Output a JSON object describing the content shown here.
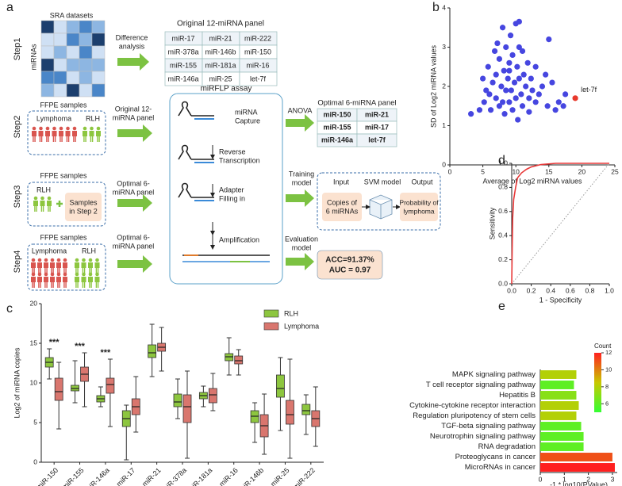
{
  "panel_labels": [
    "a",
    "b",
    "c",
    "d",
    "e"
  ],
  "diagram": {
    "steps": [
      "Step1",
      "Step2",
      "Step3",
      "Step4"
    ],
    "sra_title": "SRA datasets",
    "sra_axis": "miRNAs",
    "difference_analysis": [
      "Difference",
      "analysis"
    ],
    "original_panel": {
      "title": "Original 12-miRNA panel",
      "rows": [
        [
          "miR-17",
          "miR-21",
          "miR-222"
        ],
        [
          "miR-378a",
          "miR-146b",
          "miR-150"
        ],
        [
          "miR-155",
          "miR-181a",
          "miR-16"
        ],
        [
          "miR-146a",
          "miR-25",
          "let-7f"
        ]
      ]
    },
    "step2": {
      "samples": "FFPE samples",
      "groups": [
        "Lymphoma",
        "RLH"
      ],
      "input": [
        "Original 12-",
        "miRNA panel"
      ]
    },
    "assay": {
      "title": "miRFLP assay",
      "stages": [
        [
          "miRNA",
          "Capture"
        ],
        [
          "Reverse",
          "Transcription"
        ],
        [
          "Adapter",
          "Filling in"
        ],
        [
          "Amplification"
        ]
      ]
    },
    "anova": "ANOVA",
    "optimal_panel": {
      "title": "Optimal  6-miRNA panel",
      "rows": [
        [
          "miR-150",
          "miR-21"
        ],
        [
          "miR-155",
          "miR-17"
        ],
        [
          "miR-146a",
          "let-7f"
        ]
      ]
    },
    "step3": {
      "samples": "FFPE samples",
      "group": "RLH",
      "extra": [
        "Samples",
        "in Step 2"
      ],
      "input": [
        "Optimal 6-",
        "miRNA panel"
      ]
    },
    "training": [
      "Training",
      "model"
    ],
    "svm": {
      "headers": [
        "Input",
        "SVM model",
        "Output"
      ],
      "input": [
        "Copies of",
        "6 miRNAs"
      ],
      "output": [
        "Probability of",
        "lymphoma"
      ]
    },
    "step4": {
      "samples": "FFPE samples",
      "groups": [
        "Lymphoma",
        "RLH"
      ],
      "input": [
        "Optimal 6-",
        "miRNA panel"
      ]
    },
    "evaluation": [
      "Evaluation",
      "model"
    ],
    "metrics": [
      "ACC=91.37%",
      "AUC = 0.97"
    ]
  },
  "chart_data": [
    {
      "type": "scatter",
      "xlabel": "Average of Log2 miRNA values",
      "ylabel": "SD of Log2 miRNA values",
      "xlim": [
        0,
        25
      ],
      "xticks": [
        0,
        5,
        10,
        15,
        20,
        25
      ],
      "ylim": [
        0,
        4
      ],
      "yticks": [
        0,
        1,
        2,
        3,
        4
      ],
      "series": [
        {
          "color": "#4646e0",
          "x": [
            3.2,
            4.5,
            5,
            5.2,
            5.5,
            5.8,
            6,
            6.2,
            6.5,
            6.8,
            7,
            7,
            7.2,
            7.5,
            7.5,
            7.8,
            8,
            8,
            8.2,
            8.3,
            8.5,
            8.5,
            8.8,
            9,
            9,
            9.2,
            9.3,
            9.5,
            9.5,
            9.8,
            10,
            10,
            10.2,
            10.3,
            10.5,
            10.5,
            10.8,
            11,
            11,
            11.2,
            11.5,
            11.8,
            12,
            12,
            12.3,
            12.5,
            13,
            13,
            13.5,
            14,
            14.5,
            14.8,
            15,
            15.5,
            16,
            16.5,
            17.2,
            17.5,
            9,
            10.5
          ],
          "values": [
            1.3,
            1.4,
            2.2,
            1.6,
            1.9,
            2.5,
            1.8,
            1.4,
            2.1,
            2.9,
            1.7,
            2.3,
            3.1,
            1.5,
            2.7,
            2.0,
            3.5,
            1.6,
            2.4,
            1.3,
            1.9,
            3.0,
            2.2,
            1.6,
            2.6,
            3.3,
            1.9,
            1.4,
            2.8,
            2.1,
            3.6,
            1.7,
            2.5,
            1.15,
            3.65,
            2.2,
            1.8,
            2.9,
            1.5,
            2.3,
            2.0,
            2.6,
            1.7,
            1.35,
            2.2,
            1.9,
            2.5,
            1.6,
            1.8,
            2.0,
            2.3,
            1.5,
            3.2,
            2.1,
            1.4,
            1.6,
            1.5,
            1.8,
            2.4,
            3.0
          ]
        },
        {
          "color": "#e8392c",
          "x": [
            19
          ],
          "values": [
            1.7
          ]
        }
      ],
      "annotations": [
        "let-7f"
      ]
    },
    {
      "type": "box",
      "ylabel": "Log2 of miRNA copies",
      "ylim": [
        0,
        20
      ],
      "yticks": [
        0,
        5,
        10,
        15,
        20
      ],
      "legend": "upper right",
      "categories": [
        "miR-150",
        "miR-155",
        "miR-146a",
        "miR-17",
        "miR-21",
        "miR-378a",
        "miR-181a",
        "miR-16",
        "miR-146b",
        "miR-25",
        "miR-222"
      ],
      "series": [
        {
          "name": "RLH",
          "color": "#8dc63f",
          "values": [
            [
              10.5,
              12,
              12.6,
              13.2,
              14.3
            ],
            [
              7.5,
              9,
              9.3,
              9.7,
              12.8
            ],
            [
              7,
              7.6,
              8,
              8.4,
              9.5
            ],
            [
              0.3,
              4.5,
              5.5,
              6.5,
              7.2
            ],
            [
              10.8,
              13.2,
              13.8,
              14.8,
              17.4
            ],
            [
              5.5,
              7,
              7.6,
              8.6,
              10.5
            ],
            [
              7,
              8,
              8.4,
              8.8,
              9.6
            ],
            [
              11,
              12.8,
              13.3,
              13.7,
              15.7
            ],
            [
              2.5,
              5,
              5.8,
              6.5,
              7.5
            ],
            [
              4,
              8.2,
              9.3,
              11,
              13.2
            ],
            [
              3.5,
              6,
              6.5,
              7.3,
              8.5
            ]
          ]
        },
        {
          "name": "Lymphoma",
          "color": "#d9766e",
          "values": [
            [
              4.2,
              7.8,
              8.9,
              10.6,
              12.6
            ],
            [
              7,
              10.2,
              11.1,
              12,
              13.8
            ],
            [
              4.5,
              8.7,
              9.8,
              10.6,
              13
            ],
            [
              3.8,
              6,
              7,
              8,
              10.8
            ],
            [
              11.5,
              14,
              14.5,
              15,
              17
            ],
            [
              0.5,
              5,
              7,
              8.5,
              11.5
            ],
            [
              6.5,
              7.5,
              8.5,
              9.3,
              11.2
            ],
            [
              11,
              12.4,
              12.8,
              13.4,
              14.2
            ],
            [
              1,
              3.2,
              4.6,
              6,
              8.6
            ],
            [
              0.5,
              4.8,
              6,
              7.8,
              13
            ],
            [
              2,
              4.5,
              5.5,
              6.5,
              9.5
            ]
          ]
        }
      ],
      "annotations": [
        "***",
        "***",
        "***"
      ]
    },
    {
      "type": "line",
      "xlabel": "1 - Specificity",
      "ylabel": "Sensitivity",
      "xlim": [
        0,
        1
      ],
      "xticks": [
        {
          "value": 0,
          "label": "0.0"
        },
        0.2,
        0.4,
        0.6,
        0.8,
        {
          "value": 1,
          "label": "1.0"
        }
      ],
      "ylim": [
        0,
        1
      ],
      "yticks": [
        {
          "value": 0,
          "label": "0.0"
        },
        0.2,
        0.4,
        0.6,
        0.8,
        {
          "value": 1,
          "label": "1.0"
        }
      ],
      "series": [
        {
          "color": "#e83a3a",
          "x": [
            0,
            0.005,
            0.01,
            0.02,
            0.04,
            0.06,
            0.1,
            0.15,
            0.2,
            0.3,
            0.45,
            1
          ],
          "values": [
            0,
            0.3,
            0.55,
            0.7,
            0.8,
            0.88,
            0.92,
            0.95,
            0.97,
            0.99,
            1,
            1
          ]
        }
      ]
    },
    {
      "type": "barh",
      "xlabel": "-1 * log10(PValue)",
      "xlim": [
        0,
        3.2
      ],
      "xticks": [
        0,
        1,
        2,
        3
      ],
      "categories": [
        "MAPK signaling pathway",
        "T cell receptor signaling pathway",
        "Hepatitis B",
        "Cytokine-cytokine receptor interaction",
        "Regulation pluripotency of stem cells",
        "TGF-beta signaling pathway",
        "Neurotrophin signaling pathway",
        "RNA degradation",
        "Proteoglycans in cancer",
        "MicroRNAs in cancer"
      ],
      "values": [
        1.5,
        1.4,
        1.5,
        1.6,
        1.5,
        1.7,
        1.8,
        1.8,
        3.0,
        3.1
      ],
      "counts": [
        8,
        6,
        7,
        8,
        8,
        6,
        6,
        6,
        11,
        12
      ],
      "colorbar": {
        "title": "Count",
        "lim": [
          5,
          12
        ],
        "ticks": [
          6,
          8,
          10,
          12
        ],
        "colors": [
          "#33ff33",
          "#c8c800",
          "#ff2020"
        ]
      }
    }
  ]
}
